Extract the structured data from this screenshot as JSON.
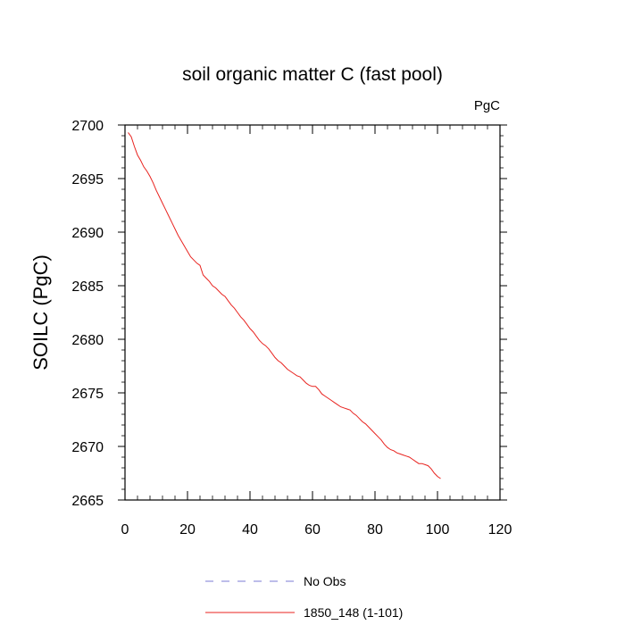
{
  "chart_data": {
    "type": "line",
    "title": "soil organic matter C (fast pool)",
    "units": "PgC",
    "ylabel": "SOILC  (PgC)",
    "xlabel": "",
    "xlim": [
      0,
      120
    ],
    "ylim": [
      2665,
      2700
    ],
    "xticks": [
      0,
      20,
      40,
      60,
      80,
      100,
      120
    ],
    "yticks": [
      2665,
      2670,
      2675,
      2680,
      2685,
      2690,
      2695,
      2700
    ],
    "grid": false,
    "legend_position": "bottom",
    "legend": [
      {
        "label": "No Obs",
        "color": "#7b7bd6",
        "style": "dashed"
      },
      {
        "label": "1850_148 (1-101)",
        "color": "#e8231f",
        "style": "solid"
      }
    ],
    "series": [
      {
        "name": "1850_148 (1-101)",
        "color": "#e8231f",
        "x": [
          1,
          2,
          3,
          4,
          5,
          6,
          7,
          8,
          9,
          10,
          11,
          12,
          13,
          14,
          15,
          16,
          17,
          18,
          19,
          20,
          21,
          22,
          23,
          24,
          25,
          26,
          27,
          28,
          29,
          30,
          31,
          32,
          33,
          34,
          35,
          36,
          37,
          38,
          39,
          40,
          41,
          42,
          43,
          44,
          45,
          46,
          47,
          48,
          49,
          50,
          51,
          52,
          53,
          54,
          55,
          56,
          57,
          58,
          59,
          60,
          61,
          62,
          63,
          64,
          65,
          66,
          67,
          68,
          69,
          70,
          71,
          72,
          73,
          74,
          75,
          76,
          77,
          78,
          79,
          80,
          81,
          82,
          83,
          84,
          85,
          86,
          87,
          88,
          89,
          90,
          91,
          92,
          93,
          94,
          95,
          96,
          97,
          98,
          99,
          100,
          101
        ],
        "y": [
          2699.3,
          2698.9,
          2698.0,
          2697.2,
          2696.7,
          2696.1,
          2695.7,
          2695.2,
          2694.6,
          2693.9,
          2693.3,
          2692.7,
          2692.1,
          2691.5,
          2690.9,
          2690.3,
          2689.7,
          2689.2,
          2688.7,
          2688.2,
          2687.7,
          2687.4,
          2687.1,
          2686.9,
          2686.0,
          2685.7,
          2685.4,
          2685.0,
          2684.8,
          2684.5,
          2684.2,
          2684.0,
          2683.6,
          2683.2,
          2682.9,
          2682.5,
          2682.1,
          2681.8,
          2681.4,
          2681.0,
          2680.7,
          2680.3,
          2679.9,
          2679.6,
          2679.4,
          2679.1,
          2678.7,
          2678.3,
          2678.0,
          2677.8,
          2677.5,
          2677.2,
          2677.0,
          2676.8,
          2676.6,
          2676.5,
          2676.2,
          2675.9,
          2675.7,
          2675.6,
          2675.6,
          2675.3,
          2674.9,
          2674.7,
          2674.5,
          2674.3,
          2674.1,
          2673.9,
          2673.7,
          2673.6,
          2673.5,
          2673.4,
          2673.1,
          2672.9,
          2672.6,
          2672.3,
          2672.1,
          2671.8,
          2671.5,
          2671.2,
          2670.9,
          2670.6,
          2670.2,
          2669.9,
          2669.7,
          2669.6,
          2669.4,
          2669.3,
          2669.2,
          2669.1,
          2669.0,
          2668.8,
          2668.6,
          2668.4,
          2668.4,
          2668.3,
          2668.2,
          2667.9,
          2667.5,
          2667.2,
          2667.0
        ]
      }
    ]
  }
}
